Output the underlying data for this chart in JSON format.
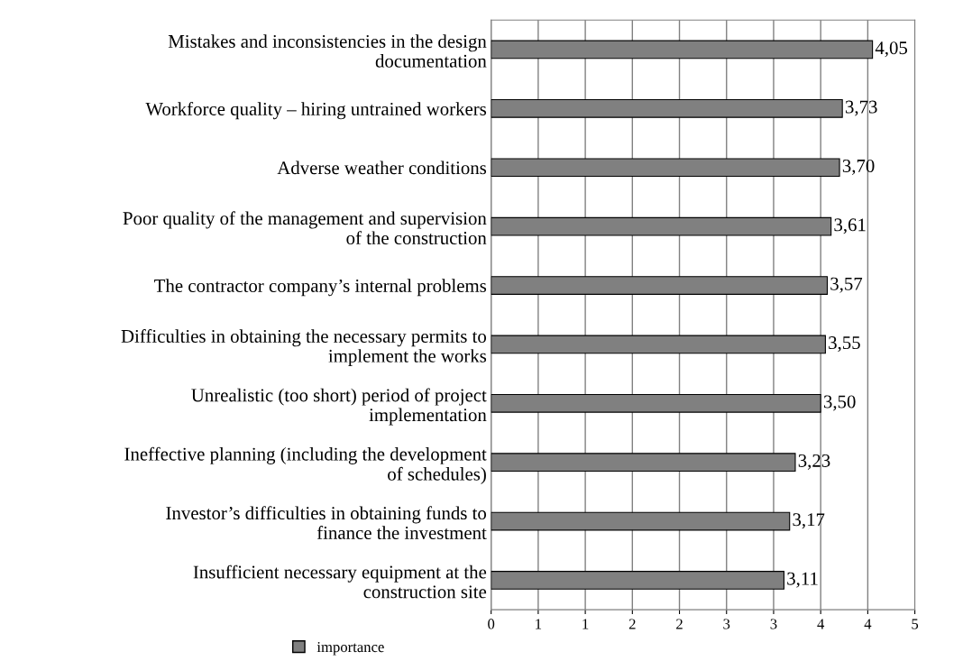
{
  "chart_data": {
    "type": "bar",
    "orientation": "horizontal",
    "categories": [
      "Mistakes and inconsistencies in the design\ndocumentation",
      "Workforce quality – hiring untrained workers",
      "Adverse weather conditions",
      "Poor quality of the management and supervision\nof the construction",
      "The contractor company’s internal problems",
      "Difficulties in obtaining the necessary permits to\nimplement the works",
      "Unrealistic (too short) period of project\nimplementation",
      "Ineffective planning (including the development\nof schedules)",
      "Investor’s difficulties in obtaining funds to\nfinance the investment",
      "Insufficient necessary equipment at the\nconstruction site"
    ],
    "series": [
      {
        "name": "importance",
        "color": "#808080",
        "values": [
          4.05,
          3.73,
          3.7,
          3.61,
          3.57,
          3.55,
          3.5,
          3.23,
          3.17,
          3.11
        ],
        "value_labels": [
          "4,05",
          "3,73",
          "3,70",
          "3,61",
          "3,57",
          "3,55",
          "3,50",
          "3,23",
          "3,17",
          "3,11"
        ]
      }
    ],
    "xlim": [
      0,
      4.5
    ],
    "xticks": [
      0,
      {
        "value": 0.5,
        "label": "1"
      },
      1,
      {
        "value": 1.5,
        "label": "2"
      },
      2,
      {
        "value": 2.5,
        "label": "3"
      },
      3,
      {
        "value": 3.5,
        "label": "4"
      },
      4,
      {
        "value": 4.5,
        "label": "5"
      }
    ],
    "grid": "x",
    "legend": "bottom left"
  }
}
